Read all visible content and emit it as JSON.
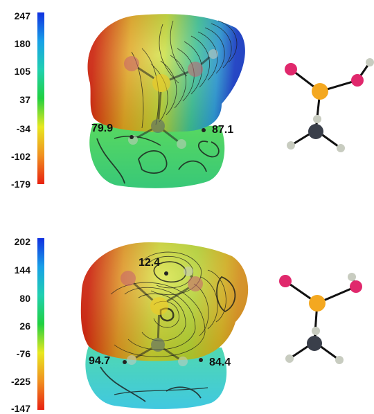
{
  "panels": [
    {
      "scale": {
        "ticks": [
          "247",
          "180",
          "105",
          "37",
          "-34",
          "-102",
          "-179"
        ],
        "gradient": [
          "#1030e0",
          "#18a0e8",
          "#20d0b0",
          "#20d040",
          "#e8e820",
          "#f09020",
          "#e82010"
        ]
      },
      "points": [
        {
          "label": "79.9"
        },
        {
          "label": "87.1"
        }
      ]
    },
    {
      "scale": {
        "ticks": [
          "202",
          "144",
          "80",
          "26",
          "-76",
          "-225",
          "-147"
        ],
        "gradient": [
          "#1030e0",
          "#18a0e8",
          "#20d0b0",
          "#20d040",
          "#e8e820",
          "#f09020",
          "#e82010"
        ]
      },
      "points": [
        {
          "label": "12.4"
        },
        {
          "label": "94.7"
        },
        {
          "label": "84.4"
        }
      ]
    }
  ],
  "colors": {
    "phosphorus": "#f4a820",
    "oxygen": "#e0286c",
    "carbon": "#3a3f4a",
    "hydrogen": "#c8ccc0",
    "bond": "#111111"
  }
}
